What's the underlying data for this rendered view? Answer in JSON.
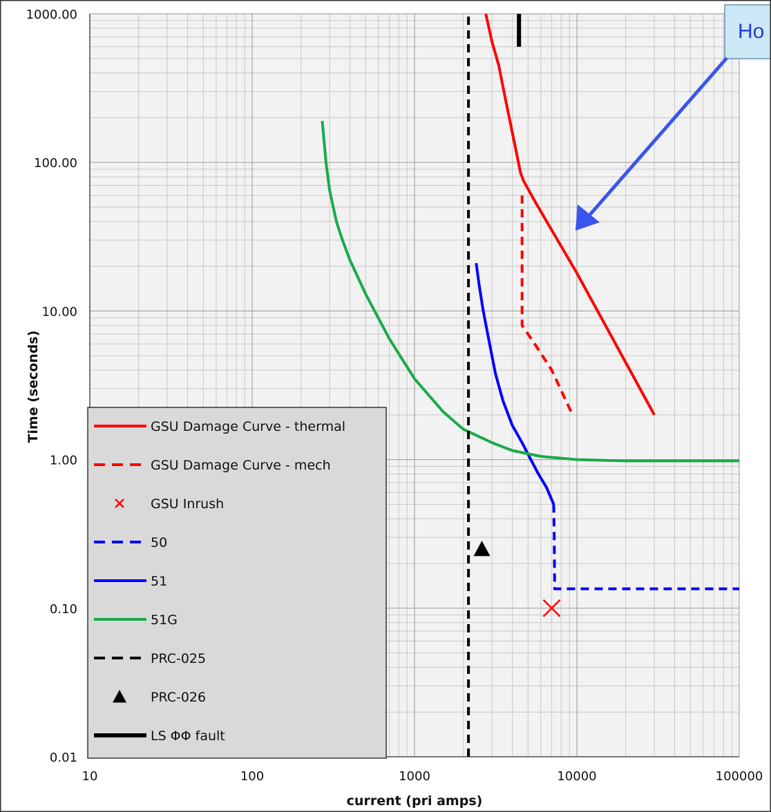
{
  "chart_data": {
    "type": "line",
    "xlabel": "current (pri amps)",
    "ylabel": "Time (seconds)",
    "x_scale": "log",
    "y_scale": "log",
    "xlim": [
      10,
      100000
    ],
    "ylim": [
      0.01,
      1000
    ],
    "grid": true,
    "legend_position": "bottom-left",
    "x_tick_labels": [
      "10",
      "100",
      "1000",
      "10000",
      "100000"
    ],
    "x_tick_values": [
      10,
      100,
      1000,
      10000,
      100000
    ],
    "y_tick_labels": [
      "0.01",
      "0.10",
      "1.00",
      "10.00",
      "100.00",
      "1000.00"
    ],
    "y_tick_values": [
      0.01,
      0.1,
      1,
      10,
      100,
      1000
    ],
    "callout": {
      "text": "Ho"
    },
    "series": [
      {
        "name": "GSU Damage Curve - thermal",
        "color": "#ff0000",
        "style": "solid",
        "x": [
          2750,
          3000,
          3300,
          3600,
          4100,
          4500,
          4700,
          5500,
          7000,
          10000,
          15000,
          20000,
          30000
        ],
        "y": [
          1000,
          650,
          450,
          280,
          140,
          85,
          75,
          55,
          35,
          18,
          8,
          4.5,
          2
        ]
      },
      {
        "name": "GSU Damage Curve - mech",
        "color": "#ff0000",
        "style": "dashed",
        "x": [
          4600,
          4600,
          4600,
          5500,
          7000,
          9500
        ],
        "y": [
          60,
          25,
          8,
          6,
          4,
          1.95
        ]
      },
      {
        "name": "GSU Inrush",
        "color": "#ff0000",
        "style": "marker-x",
        "x": [
          7000
        ],
        "y": [
          0.1
        ]
      },
      {
        "name": "50",
        "color": "#0000ff",
        "style": "dashed",
        "x": [
          7200,
          7250,
          7300,
          10000,
          30000,
          100000
        ],
        "y": [
          0.5,
          0.3,
          0.135,
          0.135,
          0.135,
          0.135
        ]
      },
      {
        "name": "51",
        "color": "#0000ff",
        "style": "solid",
        "x": [
          2400,
          2500,
          2650,
          2900,
          3150,
          3500,
          4000,
          4600,
          5200,
          5800,
          6500,
          7200
        ],
        "y": [
          21,
          15,
          10,
          6,
          3.8,
          2.5,
          1.7,
          1.3,
          1.0,
          0.8,
          0.65,
          0.5
        ]
      },
      {
        "name": "51G",
        "color": "#1aaa4a",
        "style": "solid",
        "x": [
          270,
          285,
          300,
          330,
          360,
          400,
          500,
          700,
          1000,
          1500,
          2000,
          3000,
          4000,
          6000,
          10000,
          20000,
          50000,
          100000
        ],
        "y": [
          190,
          100,
          65,
          40,
          30,
          22,
          13,
          6.5,
          3.5,
          2.1,
          1.6,
          1.3,
          1.15,
          1.05,
          1.0,
          0.98,
          0.98,
          0.98
        ]
      },
      {
        "name": "PRC-025",
        "color": "#000000",
        "style": "dashed",
        "x": [
          2150,
          2150
        ],
        "y": [
          0.01,
          1000
        ]
      },
      {
        "name": "PRC-026",
        "color": "#000000",
        "style": "marker-triangle",
        "x": [
          2600
        ],
        "y": [
          0.25
        ]
      },
      {
        "name": "LS ΦΦ fault",
        "color": "#000000",
        "style": "solid-thick",
        "x": [
          4400,
          4400
        ],
        "y": [
          600,
          1000
        ]
      }
    ]
  }
}
